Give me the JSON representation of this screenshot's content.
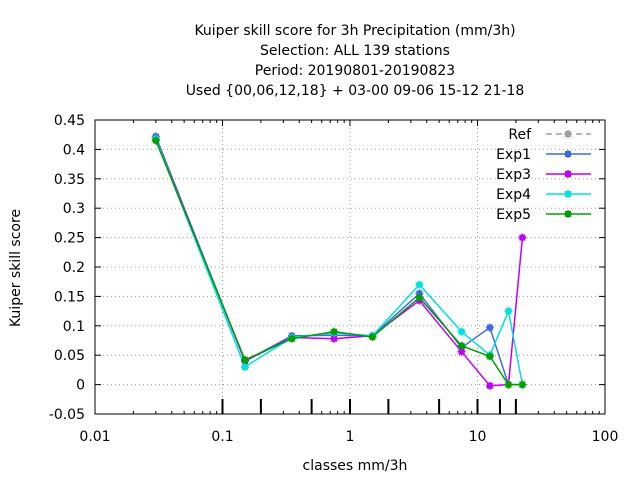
{
  "chart_data": {
    "type": "line",
    "title_lines": [
      "Kuiper skill score  for 3h Precipitation (mm/3h)",
      "Selection: ALL     139 stations",
      "Period: 20190801-20190823",
      "Used {00,06,12,18} + 03-00 09-06 15-12 21-18"
    ],
    "xlabel": "classes mm/3h",
    "ylabel": "Kuiper skill score",
    "x_scale": "log",
    "xlim": [
      0.01,
      100
    ],
    "ylim": [
      -0.05,
      0.45
    ],
    "grid": true,
    "legend_position": "top-right",
    "x_ticks": [
      {
        "value": 0.01,
        "label": "0.01"
      },
      {
        "value": 0.1,
        "label": "0.1"
      },
      {
        "value": 1,
        "label": "1"
      },
      {
        "value": 10,
        "label": "10"
      },
      {
        "value": 100,
        "label": "100"
      }
    ],
    "y_ticks": [
      {
        "value": -0.05,
        "label": "-0.05"
      },
      {
        "value": 0,
        "label": "0"
      },
      {
        "value": 0.05,
        "label": "0.05"
      },
      {
        "value": 0.1,
        "label": "0.1"
      },
      {
        "value": 0.15,
        "label": "0.15"
      },
      {
        "value": 0.2,
        "label": "0.2"
      },
      {
        "value": 0.25,
        "label": "0.25"
      },
      {
        "value": 0.3,
        "label": "0.3"
      },
      {
        "value": 0.35,
        "label": "0.35"
      },
      {
        "value": 0.4,
        "label": "0.4"
      },
      {
        "value": 0.45,
        "label": "0.45"
      }
    ],
    "class_marks": [
      0.1,
      0.2,
      0.5,
      1,
      2,
      5,
      10,
      15,
      20
    ],
    "series": [
      {
        "name": "Ref",
        "color": "#a0a0a0",
        "dashed": true,
        "x": [
          0.03
        ],
        "y": [
          0.422
        ]
      },
      {
        "name": "Exp1",
        "color": "#4169e1",
        "dashed": false,
        "x": [
          0.03,
          0.15,
          0.35,
          0.75,
          1.5,
          3.5,
          7.5,
          12.5,
          17.5,
          22.5
        ],
        "y": [
          0.422,
          0.04,
          0.083,
          0.084,
          0.083,
          0.155,
          0.063,
          0.097,
          0.0,
          0.0
        ]
      },
      {
        "name": "Exp3",
        "color": "#c000ff",
        "dashed": false,
        "x": [
          0.03,
          0.15,
          0.35,
          0.75,
          1.5,
          3.5,
          7.5,
          12.5,
          17.5,
          22.5
        ],
        "y": [
          0.418,
          0.04,
          0.08,
          0.078,
          0.083,
          0.143,
          0.056,
          -0.002,
          0.0,
          0.25
        ]
      },
      {
        "name": "Exp4",
        "color": "#00e0e0",
        "dashed": false,
        "x": [
          0.03,
          0.15,
          0.35,
          0.75,
          1.5,
          3.5,
          7.5,
          12.5,
          17.5,
          22.5
        ],
        "y": [
          0.418,
          0.03,
          0.08,
          0.088,
          0.083,
          0.17,
          0.09,
          0.05,
          0.125,
          0.0
        ]
      },
      {
        "name": "Exp5",
        "color": "#00a000",
        "dashed": false,
        "x": [
          0.03,
          0.15,
          0.35,
          0.75,
          1.5,
          3.5,
          7.5,
          12.5,
          17.5,
          22.5
        ],
        "y": [
          0.415,
          0.042,
          0.078,
          0.09,
          0.081,
          0.148,
          0.066,
          0.048,
          0.0,
          0.0
        ]
      }
    ]
  }
}
